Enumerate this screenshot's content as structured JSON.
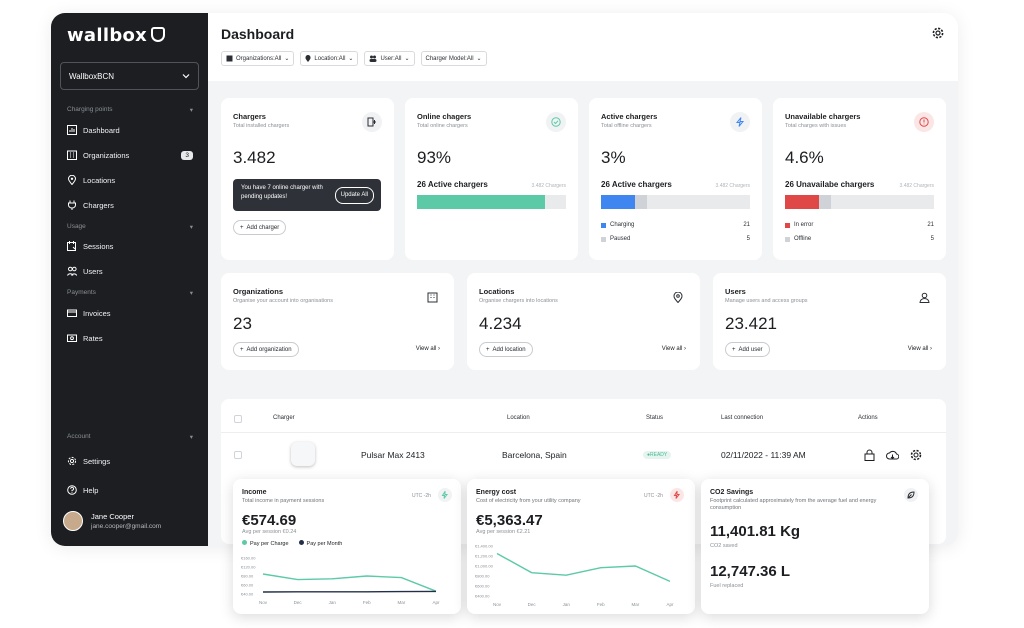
{
  "sidebar": {
    "logo": "wallbox",
    "org_select": "WallboxBCN",
    "sections": {
      "charging": "Charging points",
      "usage": "Usage",
      "payments": "Payments",
      "account": "Account"
    },
    "items": {
      "dashboard": "Dashboard",
      "organizations": "Organizations",
      "organizations_badge": "3",
      "locations": "Locations",
      "chargers": "Chargers",
      "sessions": "Sessions",
      "users": "Users",
      "invoices": "Invoices",
      "rates": "Rates",
      "settings": "Settings",
      "help": "Help"
    },
    "user": {
      "name": "Jane Cooper",
      "email": "jane.cooper@gmail.com"
    }
  },
  "header": {
    "title": "Dashboard",
    "filters": [
      "Organizations:All",
      "Location:All",
      "User:All",
      "Charger Model:All"
    ]
  },
  "cards": {
    "chargers": {
      "title": "Chargers",
      "sub": "Total installed chargers",
      "value": "3.482",
      "toast_text": "You have 7 online charger with pending updates!",
      "toast_button": "Update All",
      "add_button": "Add charger"
    },
    "online": {
      "title": "Online chagers",
      "sub": "Total online chargers",
      "value": "93%",
      "bar_label": "26 Active chargers",
      "bar_count": "3.482 Chargers",
      "fill": 0.86
    },
    "active": {
      "title": "Active chargers",
      "sub": "Total offline chargers",
      "value": "3%",
      "bar_label": "26 Active chargers",
      "bar_count": "3.482 Chargers",
      "fill_primary": 0.23,
      "fill_secondary": 0.08,
      "legend": [
        {
          "label": "Charging",
          "value": "21"
        },
        {
          "label": "Paused",
          "value": "5"
        }
      ]
    },
    "unavailable": {
      "title": "Unavailable chargers",
      "sub": "Total charges with issues",
      "value": "4.6%",
      "bar_label": "26 Unavailabe chargers",
      "bar_count": "3.482 Chargers",
      "fill_primary": 0.23,
      "fill_secondary": 0.08,
      "legend": [
        {
          "label": "In error",
          "value": "21"
        },
        {
          "label": "Offline",
          "value": "5"
        }
      ]
    },
    "organizations": {
      "title": "Organizations",
      "sub": "Organise your account into organisations",
      "value": "23",
      "add_button": "Add organization",
      "view_all": "View all"
    },
    "locations": {
      "title": "Locations",
      "sub": "Organise chargers into locations",
      "value": "4.234",
      "add_button": "Add location",
      "view_all": "View all"
    },
    "users": {
      "title": "Users",
      "sub": "Manage users and access groups",
      "value": "23.421",
      "add_button": "Add user",
      "view_all": "View all"
    }
  },
  "table": {
    "headers": {
      "charger": "Charger",
      "location": "Location",
      "status": "Status",
      "last_connection": "Last connection",
      "actions": "Actions"
    },
    "row": {
      "name": "Pulsar Max 2413",
      "location": "Barcelona, Spain",
      "status": "READY",
      "last_connection": "02/11/2022 - 11:39 AM"
    }
  },
  "widgets": {
    "income": {
      "title": "Income",
      "sub": "Total income in payment sessions",
      "tz": "UTC -2h",
      "value": "€574.69",
      "avg": "Avg per session €0.24",
      "legend": [
        "Pay per Charge",
        "Pay per Month"
      ]
    },
    "energy": {
      "title": "Energy cost",
      "sub": "Cost of electricity from your utility company",
      "tz": "UTC -2h",
      "value": "€5,363.47",
      "avg": "Avg per session €2.21"
    },
    "co2": {
      "title": "CO2 Savings",
      "sub": "Footprint calculated approximately from the average fuel and energy consumption",
      "value1": "11,401.81 Kg",
      "label1": "CO2 saved",
      "value2": "12,747.36 L",
      "label2": "Fuel replaced"
    }
  },
  "chart_data": [
    {
      "type": "line",
      "categories": [
        "Nov",
        "Dec",
        "Jan",
        "Feb",
        "Mar",
        "Apr"
      ],
      "yticks": [
        "€160.00",
        "€120.00",
        "€80.00",
        "€60.00",
        "€40.00"
      ],
      "ylim": [
        0,
        180
      ],
      "series": [
        {
          "name": "Pay per Charge",
          "values": [
            100,
            72,
            76,
            90,
            82,
            14
          ]
        },
        {
          "name": "Pay per Month",
          "values": [
            10,
            11,
            11,
            11,
            12,
            13
          ]
        }
      ]
    },
    {
      "type": "line",
      "categories": [
        "Nov",
        "Dec",
        "Jan",
        "Feb",
        "Mar",
        "Apr"
      ],
      "yticks": [
        "€1,400.00",
        "€1,200.00",
        "€1,000.00",
        "€800.00",
        "€600.00",
        "€400.00"
      ],
      "ylim": [
        300,
        1500
      ],
      "series": [
        {
          "values": [
            1320,
            860,
            800,
            980,
            1020,
            650
          ]
        }
      ]
    }
  ],
  "colors": {
    "teal": "#5cc9a7",
    "blue": "#3f86f0",
    "red": "#e04848",
    "grey": "#cfd2d6",
    "dark": "#1c1e21",
    "navy": "#23304a"
  }
}
